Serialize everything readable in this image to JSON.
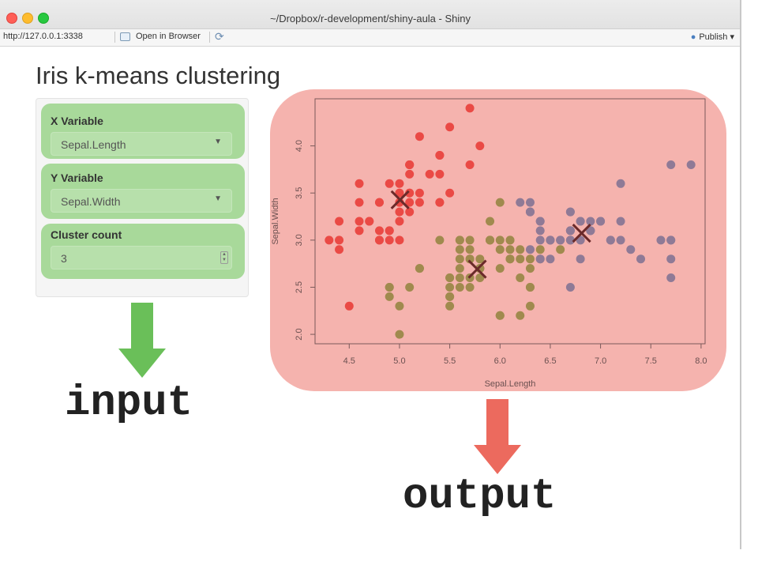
{
  "window": {
    "title": "~/Dropbox/r-development/shiny-aula - Shiny",
    "url": "http://127.0.0.1:3338",
    "open_in_browser_label": "Open in Browser",
    "publish_label": "Publish"
  },
  "app": {
    "title": "Iris k-means clustering",
    "inputs": {
      "x_label": "X Variable",
      "x_value": "Sepal.Length",
      "y_label": "Y Variable",
      "y_value": "Sepal.Width",
      "count_label": "Cluster count",
      "count_value": "3"
    }
  },
  "annotations": {
    "input_label": "input",
    "output_label": "output",
    "input_color": "#6abf59",
    "output_color": "#ec6a5e",
    "input_panel_color": "#a8d99a",
    "output_panel_color": "#f5b3ae"
  },
  "chart_data": {
    "type": "scatter",
    "xlabel": "Sepal.Length",
    "ylabel": "Sepal.Width",
    "xlim": [
      4.3,
      7.9
    ],
    "ylim": [
      2.0,
      4.4
    ],
    "xticks": [
      "4.5",
      "5.0",
      "5.5",
      "6.0",
      "6.5",
      "7.0",
      "7.5",
      "8.0"
    ],
    "yticks": [
      "2.0",
      "2.5",
      "3.0",
      "3.5",
      "4.0"
    ],
    "cluster_colors": [
      "#ea4a45",
      "#a08a4e",
      "#8f7a96"
    ],
    "series": [
      {
        "points": [
          [
            5.1,
            3.5
          ],
          [
            4.9,
            3.0
          ],
          [
            4.7,
            3.2
          ],
          [
            4.6,
            3.1
          ],
          [
            5.0,
            3.6
          ],
          [
            5.4,
            3.9
          ],
          [
            4.6,
            3.4
          ],
          [
            5.0,
            3.4
          ],
          [
            4.4,
            2.9
          ],
          [
            4.9,
            3.1
          ],
          [
            5.4,
            3.7
          ],
          [
            4.8,
            3.4
          ],
          [
            4.8,
            3.0
          ],
          [
            4.3,
            3.0
          ],
          [
            5.8,
            4.0
          ],
          [
            5.7,
            4.4
          ],
          [
            5.4,
            3.9
          ],
          [
            5.1,
            3.5
          ],
          [
            5.7,
            3.8
          ],
          [
            5.1,
            3.8
          ],
          [
            5.4,
            3.4
          ],
          [
            5.1,
            3.7
          ],
          [
            4.6,
            3.6
          ],
          [
            5.1,
            3.3
          ],
          [
            4.8,
            3.4
          ],
          [
            5.0,
            3.0
          ],
          [
            5.0,
            3.4
          ],
          [
            5.2,
            3.5
          ],
          [
            5.2,
            3.4
          ],
          [
            4.7,
            3.2
          ],
          [
            4.8,
            3.1
          ],
          [
            5.4,
            3.4
          ],
          [
            5.2,
            4.1
          ],
          [
            5.5,
            4.2
          ],
          [
            4.9,
            3.1
          ],
          [
            5.0,
            3.2
          ],
          [
            5.5,
            3.5
          ],
          [
            4.9,
            3.6
          ],
          [
            4.4,
            3.0
          ],
          [
            5.1,
            3.4
          ],
          [
            5.0,
            3.5
          ],
          [
            4.5,
            2.3
          ],
          [
            4.4,
            3.2
          ],
          [
            5.0,
            3.5
          ],
          [
            5.1,
            3.8
          ],
          [
            4.8,
            3.0
          ],
          [
            5.1,
            3.8
          ],
          [
            4.6,
            3.2
          ],
          [
            5.3,
            3.7
          ],
          [
            5.0,
            3.3
          ]
        ]
      },
      {
        "points": [
          [
            5.5,
            2.3
          ],
          [
            5.7,
            2.8
          ],
          [
            4.9,
            2.4
          ],
          [
            6.6,
            2.9
          ],
          [
            5.2,
            2.7
          ],
          [
            5.0,
            2.0
          ],
          [
            5.9,
            3.0
          ],
          [
            6.0,
            2.2
          ],
          [
            6.1,
            2.9
          ],
          [
            5.6,
            2.9
          ],
          [
            5.6,
            3.0
          ],
          [
            5.8,
            2.7
          ],
          [
            6.2,
            2.2
          ],
          [
            5.6,
            2.5
          ],
          [
            5.9,
            3.2
          ],
          [
            6.1,
            2.8
          ],
          [
            6.3,
            2.5
          ],
          [
            6.1,
            2.8
          ],
          [
            6.4,
            2.9
          ],
          [
            6.0,
            2.9
          ],
          [
            5.7,
            2.6
          ],
          [
            5.5,
            2.4
          ],
          [
            5.5,
            2.4
          ],
          [
            5.8,
            2.7
          ],
          [
            6.0,
            2.7
          ],
          [
            5.4,
            3.0
          ],
          [
            6.0,
            3.4
          ],
          [
            6.3,
            2.3
          ],
          [
            5.6,
            3.0
          ],
          [
            5.5,
            2.5
          ],
          [
            5.5,
            2.6
          ],
          [
            6.1,
            3.0
          ],
          [
            5.8,
            2.6
          ],
          [
            5.0,
            2.3
          ],
          [
            5.6,
            2.7
          ],
          [
            5.7,
            3.0
          ],
          [
            5.7,
            2.9
          ],
          [
            6.2,
            2.9
          ],
          [
            5.1,
            2.5
          ],
          [
            5.7,
            2.8
          ],
          [
            4.9,
            2.5
          ],
          [
            5.8,
            2.8
          ],
          [
            6.0,
            2.2
          ],
          [
            5.6,
            2.8
          ],
          [
            6.3,
            2.7
          ],
          [
            6.2,
            2.8
          ],
          [
            6.1,
            3.0
          ],
          [
            6.3,
            2.5
          ],
          [
            6.0,
            3.0
          ],
          [
            5.9,
            3.0
          ],
          [
            5.8,
            2.7
          ],
          [
            6.3,
            2.8
          ],
          [
            5.8,
            2.7
          ],
          [
            5.7,
            2.5
          ],
          [
            6.4,
            2.8
          ],
          [
            5.6,
            2.6
          ],
          [
            6.2,
            2.6
          ],
          [
            5.9,
            3.0
          ],
          [
            5.5,
            2.6
          ],
          [
            4.9,
            2.5
          ],
          [
            5.2,
            2.7
          ]
        ]
      },
      {
        "points": [
          [
            7.0,
            3.2
          ],
          [
            6.4,
            3.2
          ],
          [
            6.9,
            3.1
          ],
          [
            6.5,
            2.8
          ],
          [
            6.3,
            3.3
          ],
          [
            6.7,
            3.1
          ],
          [
            6.8,
            2.8
          ],
          [
            6.7,
            3.0
          ],
          [
            6.3,
            3.3
          ],
          [
            7.1,
            3.0
          ],
          [
            6.3,
            2.9
          ],
          [
            6.5,
            3.0
          ],
          [
            7.6,
            3.0
          ],
          [
            7.3,
            2.9
          ],
          [
            6.7,
            2.5
          ],
          [
            7.2,
            3.6
          ],
          [
            6.4,
            3.2
          ],
          [
            6.8,
            3.0
          ],
          [
            6.5,
            3.0
          ],
          [
            7.7,
            3.8
          ],
          [
            7.7,
            2.6
          ],
          [
            6.9,
            3.2
          ],
          [
            7.7,
            2.8
          ],
          [
            6.7,
            3.3
          ],
          [
            7.2,
            3.2
          ],
          [
            7.2,
            3.0
          ],
          [
            7.4,
            2.8
          ],
          [
            7.9,
            3.8
          ],
          [
            6.4,
            2.8
          ],
          [
            7.7,
            3.0
          ],
          [
            6.3,
            3.4
          ],
          [
            6.4,
            3.1
          ],
          [
            6.9,
            3.1
          ],
          [
            6.7,
            3.1
          ],
          [
            6.9,
            3.1
          ],
          [
            6.8,
            3.2
          ],
          [
            6.7,
            3.3
          ],
          [
            6.7,
            3.0
          ],
          [
            6.5,
            3.0
          ],
          [
            6.2,
            3.4
          ],
          [
            6.6,
            3.0
          ],
          [
            6.8,
            3.2
          ],
          [
            7.0,
            3.2
          ],
          [
            6.3,
            3.3
          ],
          [
            6.7,
            3.1
          ],
          [
            6.4,
            3.0
          ],
          [
            7.1,
            3.0
          ],
          [
            6.6,
            3.0
          ],
          [
            7.7,
            3.0
          ]
        ]
      }
    ],
    "centers": [
      [
        5.006,
        3.428
      ],
      [
        5.774,
        2.692
      ],
      [
        6.812,
        3.074
      ]
    ]
  }
}
